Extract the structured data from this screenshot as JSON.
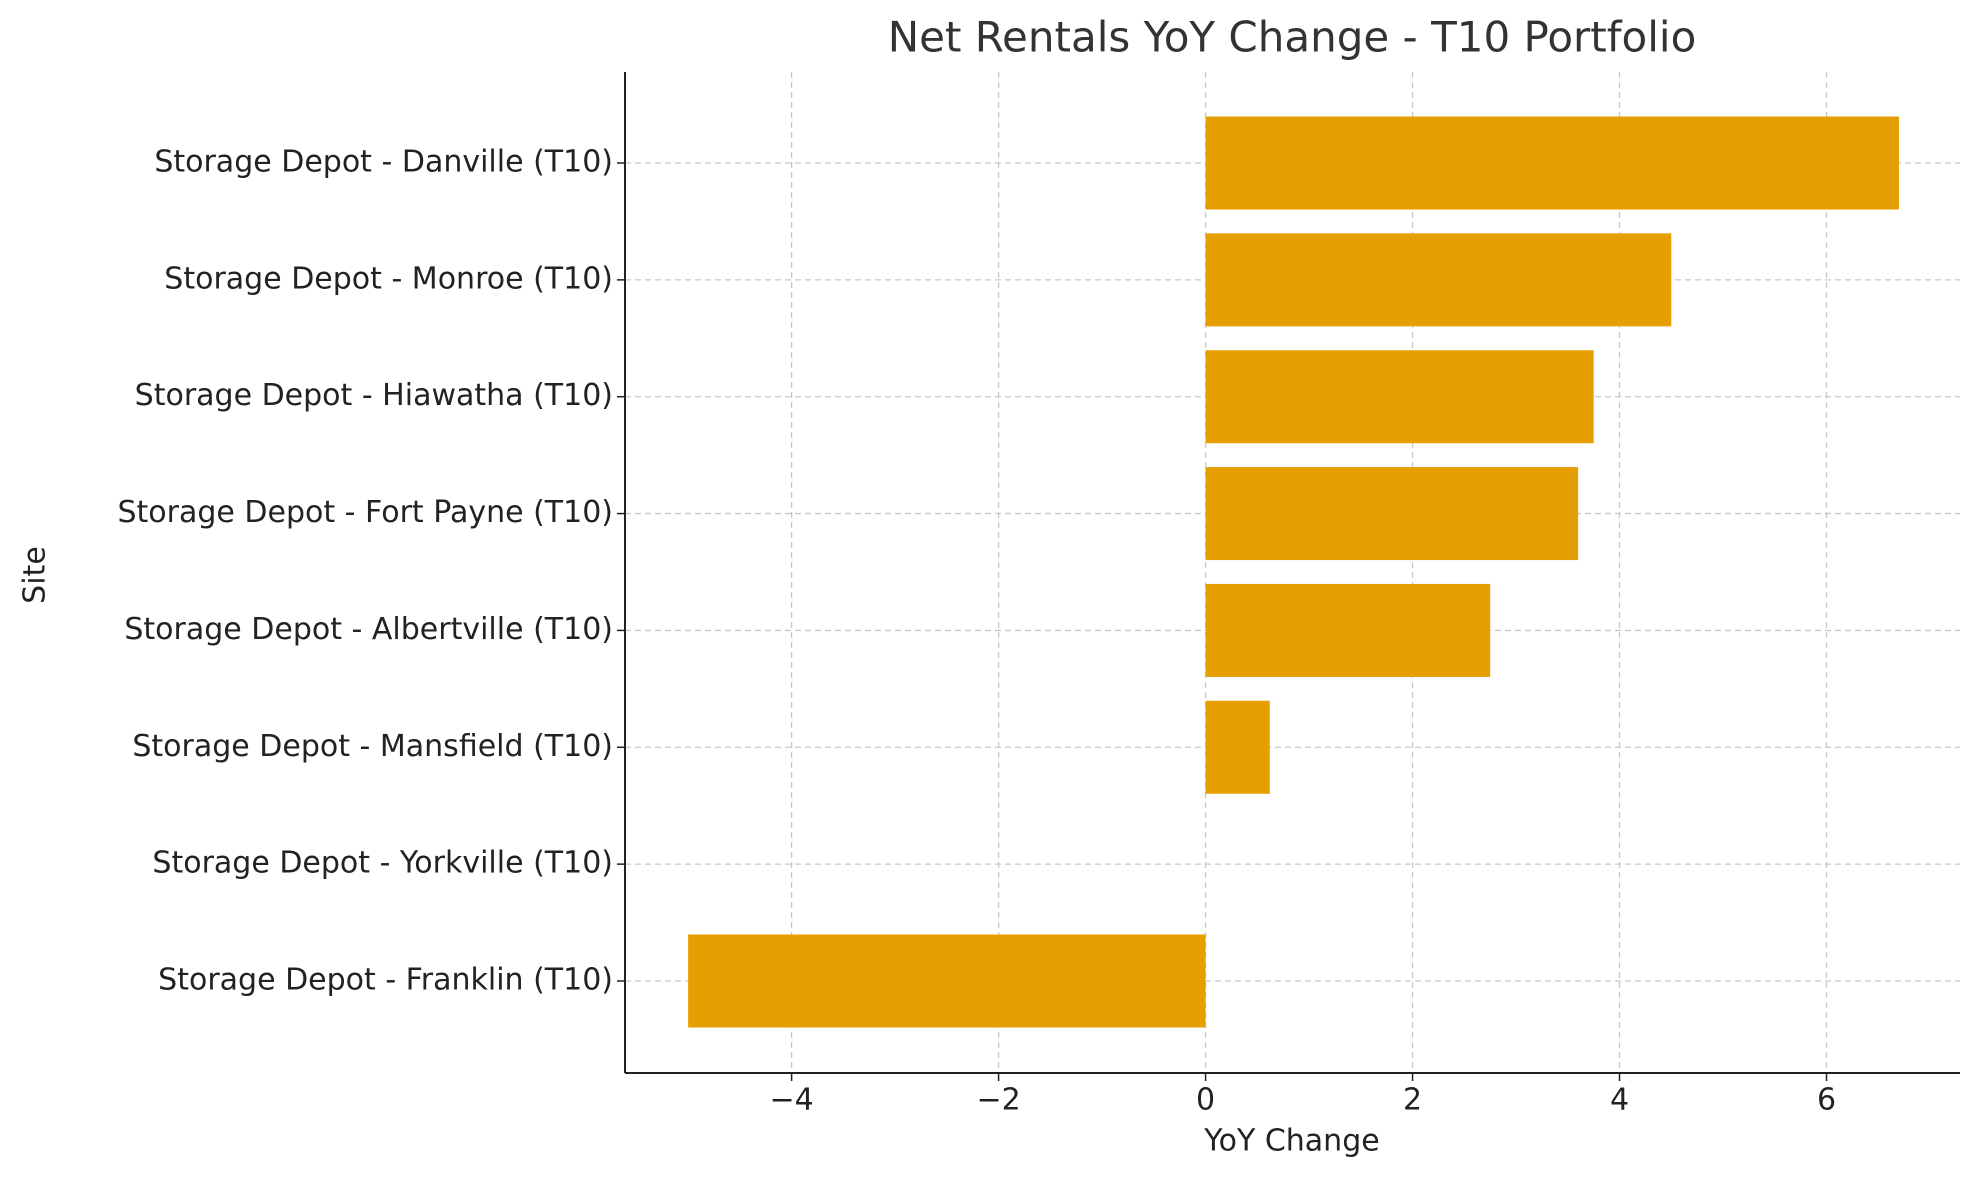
{
  "chart_data": {
    "type": "barh",
    "title": "Net Rentals YoY Change - T10 Portfolio",
    "x_label": "YoY Change",
    "y_label": "Site",
    "categories": [
      "Storage Depot - Danville (T10)",
      "Storage Depot - Monroe (T10)",
      "Storage Depot - Hiawatha (T10)",
      "Storage Depot - Fort Payne (T10)",
      "Storage Depot - Albertville (T10)",
      "Storage Depot - Mansfield (T10)",
      "Storage Depot - Yorkville (T10)",
      "Storage Depot - Franklin (T10)"
    ],
    "values": [
      6.7,
      4.5,
      3.75,
      3.6,
      2.75,
      0.62,
      0,
      -5
    ],
    "color": "#e69f00",
    "xlim": [
      -5.61,
      7.29
    ],
    "xticks": [
      {
        "value": -4,
        "label": "−4"
      },
      {
        "value": -2,
        "label": "−2"
      },
      0,
      2,
      4,
      6
    ],
    "grid": true
  }
}
